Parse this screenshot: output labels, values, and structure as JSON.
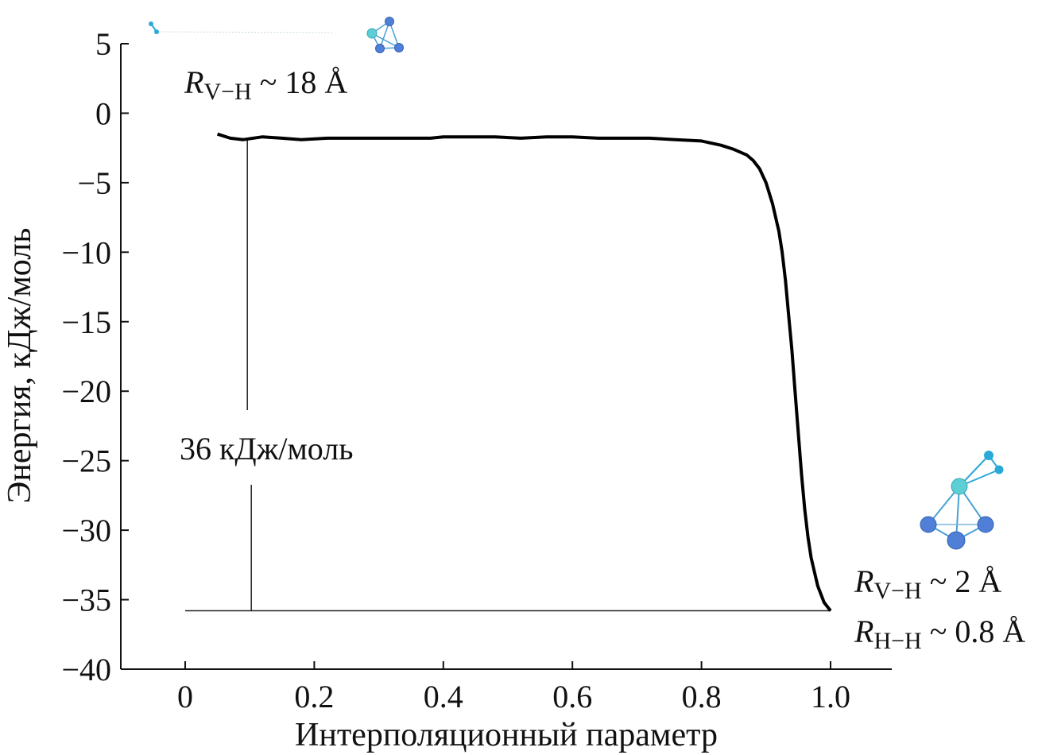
{
  "chart_data": {
    "type": "line",
    "xlabel": "Интерполяционный параметр",
    "ylabel": "Энергия, кДж/моль",
    "xlim": [
      -0.1,
      1.1
    ],
    "ylim": [
      -40,
      5
    ],
    "xticks": [
      0,
      0.2,
      0.4,
      0.6,
      0.8,
      1.0
    ],
    "xtick_labels": [
      "0",
      "0.2",
      "0.4",
      "0.6",
      "0.8",
      "1.0"
    ],
    "yticks": [
      5,
      0,
      -5,
      -10,
      -15,
      -20,
      -25,
      -30,
      -35,
      -40
    ],
    "ytick_labels": [
      "5",
      "0",
      "−5",
      "−10",
      "−15",
      "−20",
      "−25",
      "−30",
      "−35",
      "−40"
    ],
    "grid": false,
    "series": [
      {
        "x": [
          0.05,
          0.07,
          0.09,
          0.12,
          0.15,
          0.18,
          0.22,
          0.26,
          0.3,
          0.34,
          0.38,
          0.4,
          0.44,
          0.48,
          0.52,
          0.56,
          0.6,
          0.64,
          0.68,
          0.72,
          0.76,
          0.8,
          0.83,
          0.85,
          0.87,
          0.88,
          0.89,
          0.9,
          0.91,
          0.92,
          0.925,
          0.93,
          0.935,
          0.94,
          0.945,
          0.95,
          0.955,
          0.96,
          0.965,
          0.97,
          0.98,
          0.99,
          1.0
        ],
        "y": [
          -1.5,
          -1.8,
          -1.9,
          -1.7,
          -1.8,
          -1.9,
          -1.8,
          -1.8,
          -1.8,
          -1.8,
          -1.8,
          -1.7,
          -1.7,
          -1.7,
          -1.8,
          -1.7,
          -1.7,
          -1.8,
          -1.8,
          -1.8,
          -1.9,
          -2.0,
          -2.3,
          -2.6,
          -3.0,
          -3.4,
          -4.0,
          -5.0,
          -6.5,
          -8.5,
          -10.0,
          -12.0,
          -14.5,
          -17.0,
          -20.0,
          -23.0,
          -26.0,
          -28.5,
          -30.5,
          -32.0,
          -34.0,
          -35.2,
          -35.8
        ]
      }
    ],
    "annotations": {
      "top_label_main": "R",
      "top_label_sub": "V−H",
      "top_label_rest": " ~ 18 Å",
      "barrier_label": "36 кДж/моль",
      "bottom_label1_main": "R",
      "bottom_label1_sub": "V−H",
      "bottom_label1_rest": " ~ 2 Å",
      "bottom_label2_main": "R",
      "bottom_label2_sub": "H−H",
      "bottom_label2_rest": " ~ 0.8 Å"
    },
    "barrier": {
      "x": 0.1,
      "y_top": -1.9,
      "y_bottom": -35.8,
      "x_start": 0,
      "x_end": 1.0
    },
    "colors": {
      "curve": "#000000",
      "atom_v": "#5ccfd6",
      "atom_pt": "#4f7fd6",
      "atom_h": "#2aa8d8",
      "bond": "#4aa0d8"
    }
  }
}
